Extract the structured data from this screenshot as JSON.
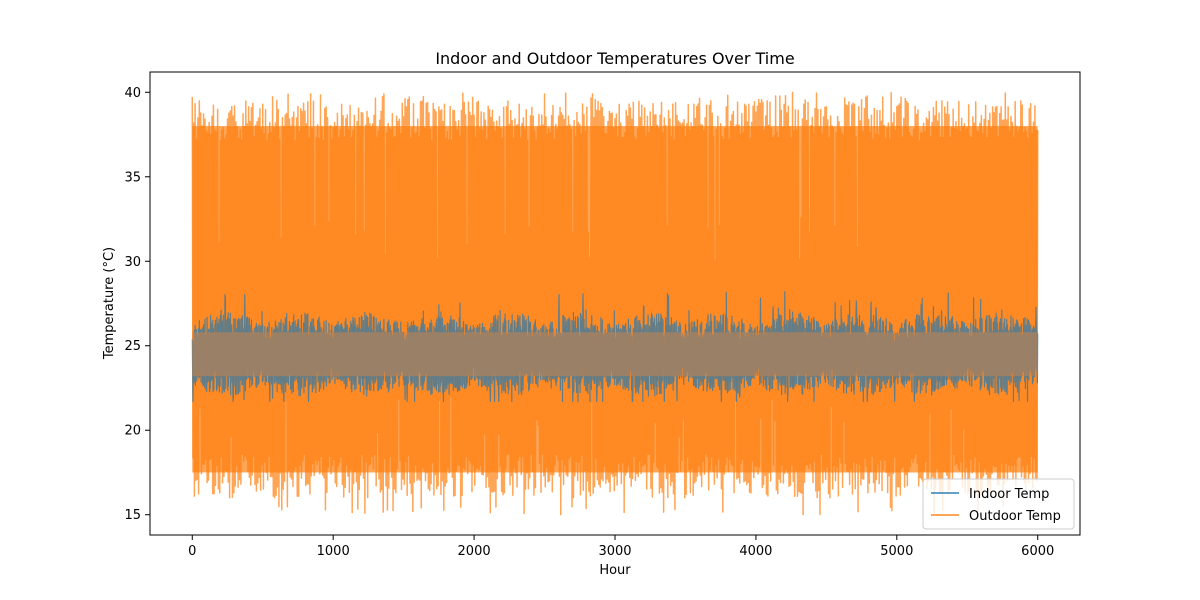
{
  "chart_data": {
    "type": "line",
    "title": "Indoor and Outdoor Temperatures Over Time",
    "xlabel": "Hour",
    "ylabel": "Temperature (°C)",
    "xlim": [
      -300,
      6300
    ],
    "ylim": [
      13.8,
      41.2
    ],
    "xticks": [
      0,
      1000,
      2000,
      3000,
      4000,
      5000,
      6000
    ],
    "yticks": [
      15,
      20,
      25,
      30,
      35,
      40
    ],
    "legend_position": "lower right",
    "grid": false,
    "x_range": [
      0,
      6000
    ],
    "series": [
      {
        "name": "Indoor Temp",
        "color": "#1f77b4",
        "opacity": 0.7,
        "mean": 24.5,
        "range": [
          21.7,
          28.3
        ],
        "typical_band": [
          22.5,
          26.5
        ]
      },
      {
        "name": "Outdoor Temp",
        "color": "#ff7f0e",
        "opacity": 0.7,
        "mean": 27.5,
        "range": [
          15.0,
          40.0
        ],
        "typical_band": [
          16.0,
          39.5
        ]
      }
    ]
  }
}
